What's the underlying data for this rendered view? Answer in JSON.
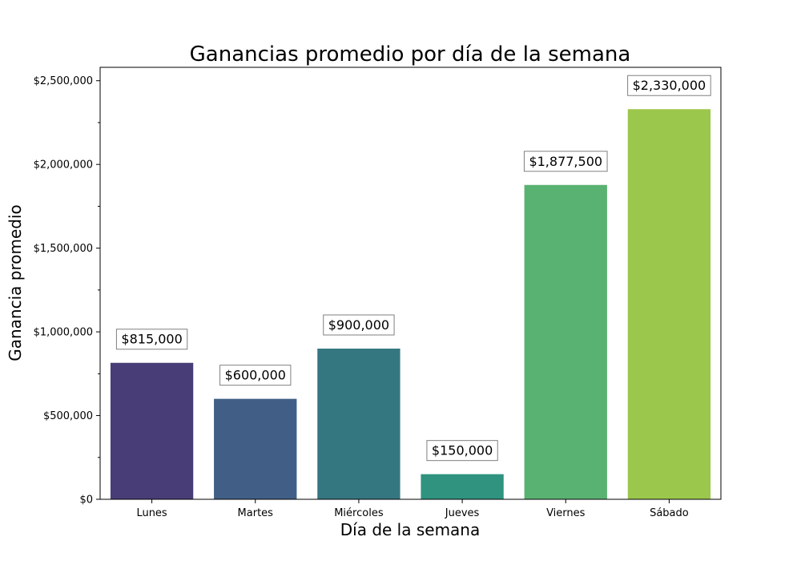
{
  "chart_data": {
    "type": "bar",
    "title": "Ganancias promedio por día de la semana",
    "xlabel": "Día de la semana",
    "ylabel": "Ganancia promedio",
    "categories": [
      "Lunes",
      "Martes",
      "Miércoles",
      "Jueves",
      "Viernes",
      "Sábado"
    ],
    "values": [
      815000,
      600000,
      900000,
      150000,
      1877500,
      2330000
    ],
    "value_labels": [
      "$815,000",
      "$600,000",
      "$900,000",
      "$150,000",
      "$1,877,500",
      "$2,330,000"
    ],
    "colors": [
      "#483d76",
      "#415f86",
      "#357780",
      "#2f937f",
      "#5ab272",
      "#9bc74c"
    ],
    "ylim": [
      0,
      2580000
    ],
    "yticks": [
      0,
      500000,
      1000000,
      1500000,
      2000000,
      2500000
    ],
    "ytick_labels": [
      "$0",
      "$500,000",
      "$1,000,000",
      "$1,500,000",
      "$2,000,000",
      "$2,500,000"
    ],
    "yminor_ticks": [
      250000,
      750000,
      1250000,
      1750000,
      2250000
    ],
    "grid": false,
    "legend": "none"
  }
}
